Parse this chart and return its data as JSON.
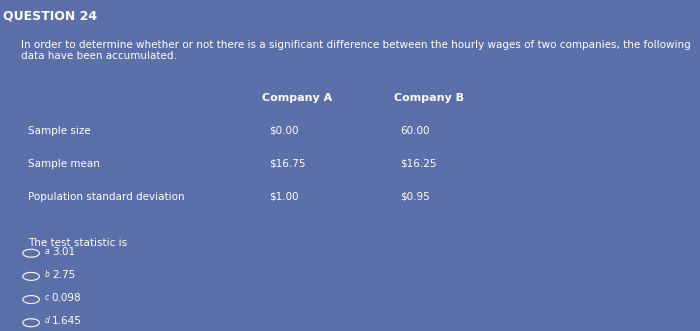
{
  "title": "QUESTION 24",
  "background_color": "#5b6fa8",
  "text_color": "#ffffff",
  "intro_text": "In order to determine whether or not there is a significant difference between the hourly wages of two companies, the following data have been accumulated.",
  "col_header_a": "Company A",
  "col_header_b": "Company B",
  "row_labels": [
    "Sample size",
    "Sample mean",
    "Population standard deviation"
  ],
  "col_a_values": [
    "$0.00",
    "$16.75",
    "$1.00"
  ],
  "col_b_values": [
    "60.00",
    "$16.25",
    "$0.95"
  ],
  "test_stat_text": "The test statistic is",
  "options": [
    {
      "letter": "a",
      "value": "3.01"
    },
    {
      "letter": "b",
      "value": "2.75"
    },
    {
      "letter": "c",
      "value": "0.098"
    },
    {
      "letter": "d",
      "value": "1.645"
    }
  ],
  "title_fontsize": 9,
  "body_fontsize": 8,
  "small_fontsize": 7.5
}
